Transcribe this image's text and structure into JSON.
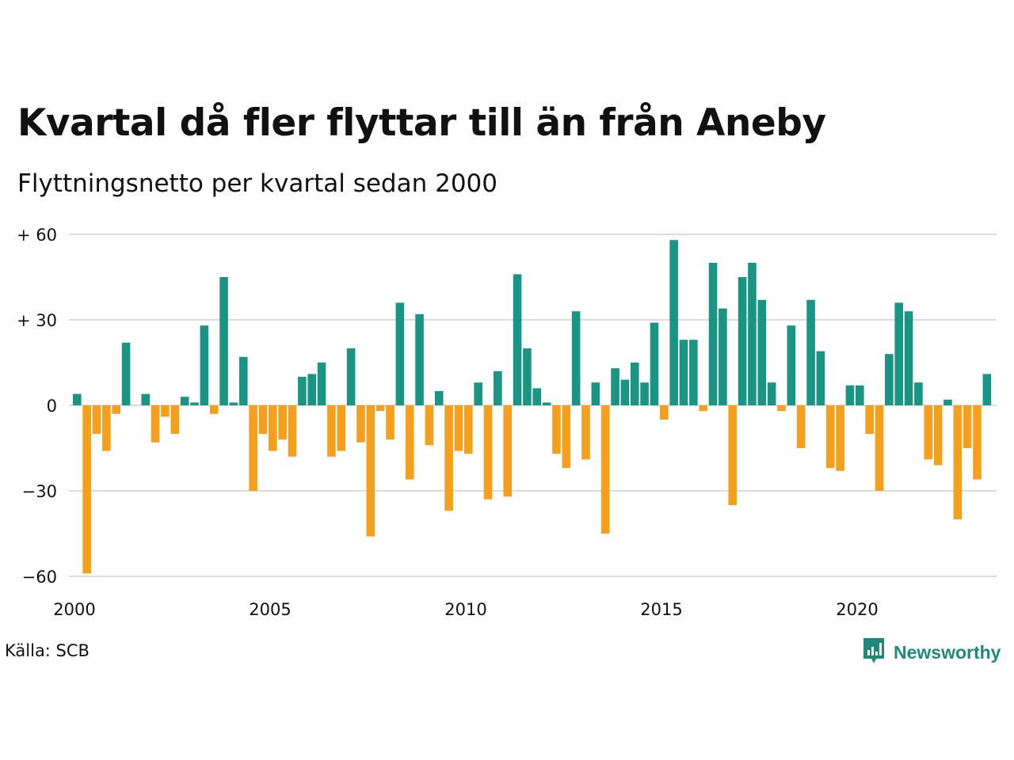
{
  "header": {
    "title": "Kvartal då fler flyttar till än från Aneby",
    "subtitle": "Flyttningsnetto per kvartal sedan 2000"
  },
  "footer": {
    "source": "Källa: SCB",
    "brand": "Newsworthy",
    "brand_icon": "newsworthy-logo-icon"
  },
  "colors": {
    "positive": "#1a9584",
    "negative": "#f5a01d",
    "grid": "#dcdcdc",
    "brand": "#1e8a7a"
  },
  "chart_data": {
    "type": "bar",
    "title": "Kvartal då fler flyttar till än från Aneby",
    "subtitle": "Flyttningsnetto per kvartal sedan 2000",
    "x_start": "2000 Q1",
    "x_interval": "quarter",
    "x_ticks": [
      {
        "label": "2000",
        "year": 2000
      },
      {
        "label": "2005",
        "year": 2005
      },
      {
        "label": "2010",
        "year": 2010
      },
      {
        "label": "2015",
        "year": 2015
      },
      {
        "label": "2020",
        "year": 2020
      }
    ],
    "y_ticks": [
      {
        "label": "+ 60",
        "value": 60
      },
      {
        "label": "+ 30",
        "value": 30
      },
      {
        "label": "0",
        "value": 0
      },
      {
        "label": "−30",
        "value": -30
      },
      {
        "label": "−60",
        "value": -60
      }
    ],
    "ylim": [
      -60,
      60
    ],
    "grid": true,
    "values": [
      4,
      -59,
      -10,
      -16,
      -3,
      22,
      0,
      4,
      -13,
      -4,
      -10,
      3,
      1,
      28,
      -3,
      45,
      1,
      17,
      -30,
      -10,
      -16,
      -12,
      -18,
      10,
      11,
      15,
      -18,
      -16,
      20,
      -13,
      -46,
      -2,
      -12,
      36,
      -26,
      32,
      -14,
      5,
      -37,
      -16,
      -17,
      8,
      -33,
      12,
      -32,
      46,
      20,
      6,
      1,
      -17,
      -22,
      33,
      -19,
      8,
      -45,
      13,
      9,
      15,
      8,
      29,
      -5,
      58,
      23,
      23,
      -2,
      50,
      34,
      -35,
      45,
      50,
      37,
      8,
      -2,
      28,
      -15,
      37,
      19,
      -22,
      -23,
      7,
      7,
      -10,
      -30,
      18,
      36,
      33,
      8,
      -19,
      -21,
      2,
      -40,
      -15,
      -26,
      11
    ]
  }
}
